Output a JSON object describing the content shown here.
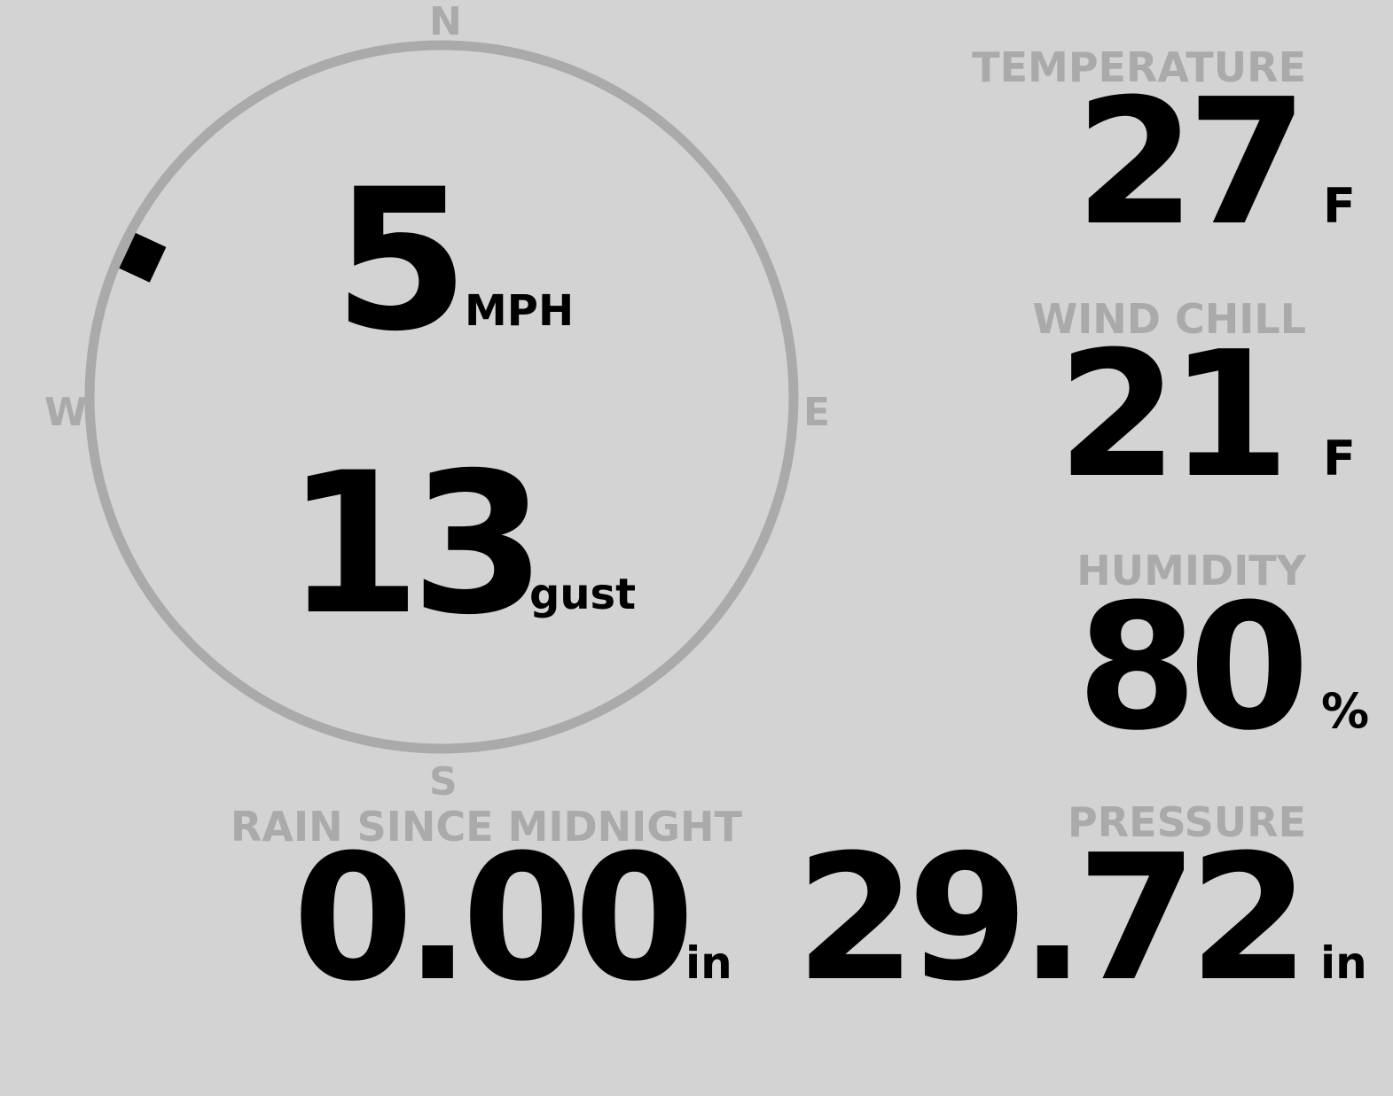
{
  "wind": {
    "compass": {
      "north": "N",
      "south": "S",
      "east": "E",
      "west": "W"
    },
    "direction_degrees": 295,
    "speed": "5",
    "speed_unit": "MPH",
    "gust": "13",
    "gust_unit": "gust"
  },
  "temperature": {
    "label": "TEMPERATURE",
    "value": "27",
    "unit": "F"
  },
  "wind_chill": {
    "label": "WIND CHILL",
    "value": "21",
    "unit": "F"
  },
  "humidity": {
    "label": "HUMIDITY",
    "value": "80",
    "unit": "%"
  },
  "rain": {
    "label": "RAIN SINCE MIDNIGHT",
    "value": "0.00",
    "unit": "in"
  },
  "pressure": {
    "label": "PRESSURE",
    "value": "29.72",
    "unit": "in"
  },
  "colors": {
    "background": "#d3d3d3",
    "label": "#aaaaaa",
    "value": "#000000",
    "ring": "#aaaaaa"
  }
}
